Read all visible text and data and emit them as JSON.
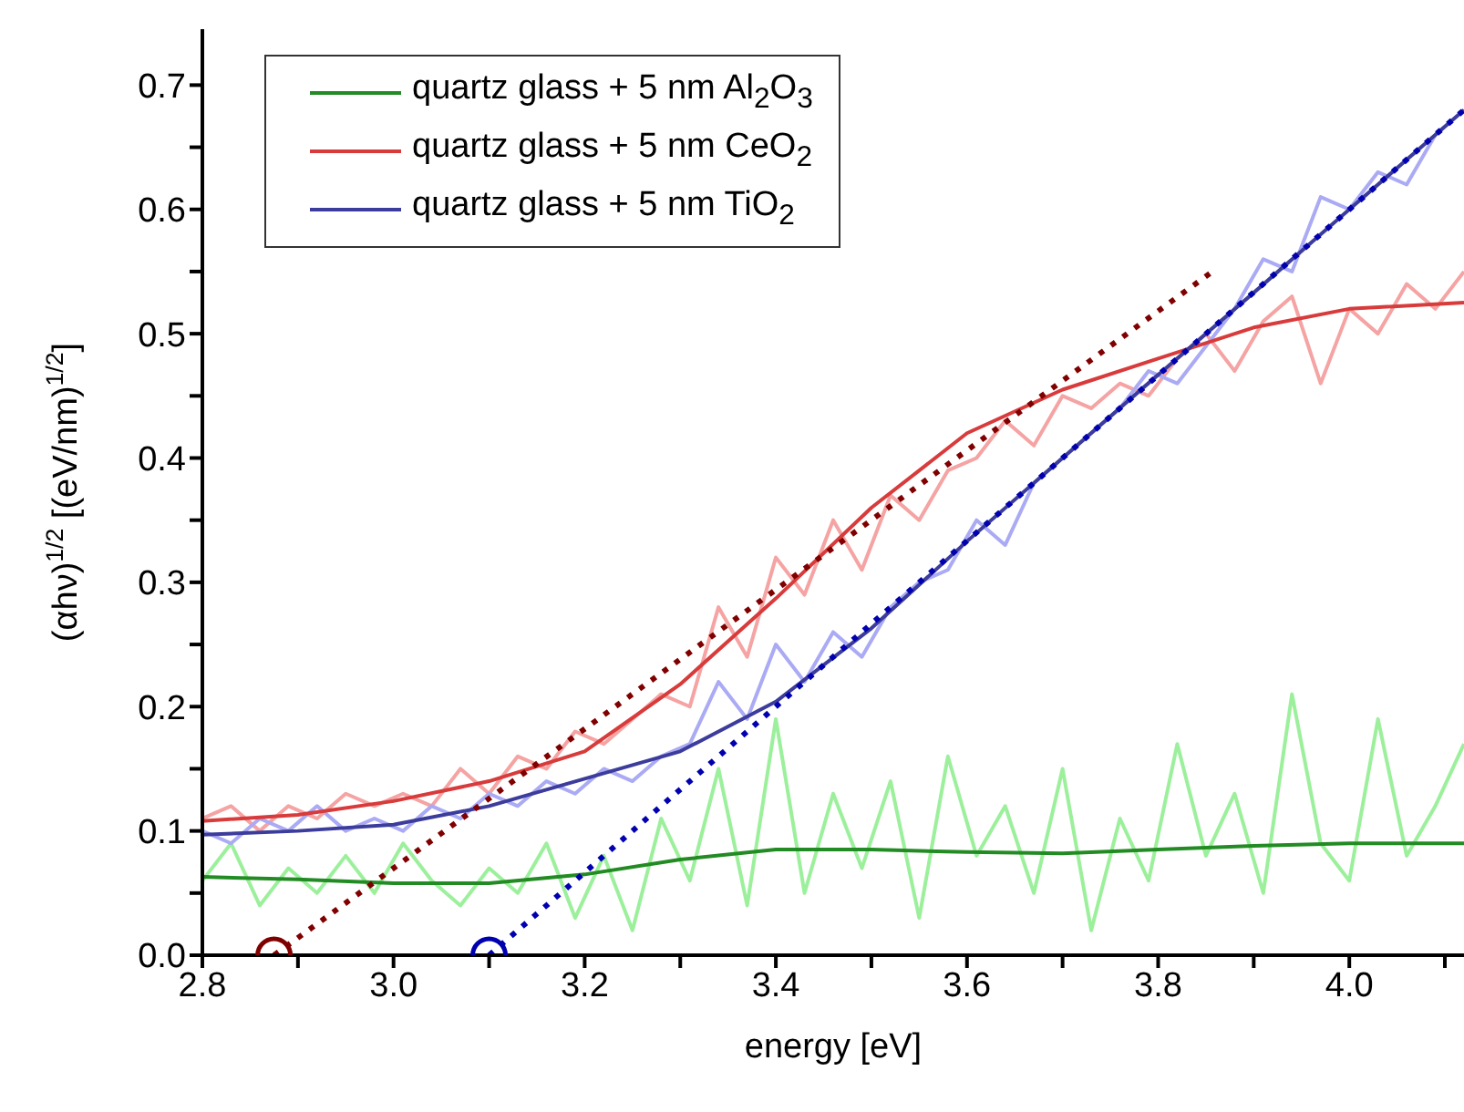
{
  "chart_data": {
    "type": "line",
    "xlabel": "energy [eV]",
    "ylabel": "(αhν)$^{1/2}$ [(eV/nm)$^{1/2}$]",
    "xlim": [
      2.8,
      4.12
    ],
    "xticks": [
      2.8,
      {
        "value": 2.9,
        "label": null
      },
      {
        "value": 3.0,
        "label": "3.0"
      },
      {
        "value": 3.1,
        "label": null
      },
      3.2,
      {
        "value": 3.3,
        "label": null
      },
      3.4,
      {
        "value": 3.5,
        "label": null
      },
      3.6,
      {
        "value": 3.7,
        "label": null
      },
      3.8,
      {
        "value": 3.9,
        "label": null
      },
      {
        "value": 4.0,
        "label": "4.0"
      },
      {
        "value": 4.1,
        "label": null
      }
    ],
    "ylim": [
      0,
      0.745
    ],
    "yticks": [
      {
        "value": 0,
        "label": "0.0"
      },
      {
        "value": 0.05,
        "label": null
      },
      0.1,
      {
        "value": 0.15,
        "label": null
      },
      0.2,
      {
        "value": 0.25,
        "label": null
      },
      0.3,
      {
        "value": 0.35,
        "label": null
      },
      0.4,
      {
        "value": 0.45,
        "label": null
      },
      0.5,
      {
        "value": 0.55,
        "label": null
      },
      0.6,
      {
        "value": 0.65,
        "label": null
      },
      0.7
    ],
    "grid": false,
    "legend": "top left",
    "marker": "none",
    "series": [
      {
        "color": "#9cf09c",
        "x": [
          2.8,
          2.83,
          2.86,
          2.89,
          2.92,
          2.95,
          2.98,
          3.01,
          3.04,
          3.07,
          3.1,
          3.13,
          3.16,
          3.19,
          3.22,
          3.25,
          3.28,
          3.31,
          3.34,
          3.37,
          3.4,
          3.43,
          3.46,
          3.49,
          3.52,
          3.55,
          3.58,
          3.61,
          3.64,
          3.67,
          3.7,
          3.73,
          3.76,
          3.79,
          3.82,
          3.85,
          3.88,
          3.91,
          3.94,
          3.97,
          4.0,
          4.03,
          4.06,
          4.09,
          4.12
        ],
        "values": [
          0.06,
          0.09,
          0.04,
          0.07,
          0.05,
          0.08,
          0.05,
          0.09,
          0.06,
          0.04,
          0.07,
          0.05,
          0.09,
          0.03,
          0.08,
          0.02,
          0.11,
          0.06,
          0.15,
          0.04,
          0.19,
          0.05,
          0.13,
          0.07,
          0.14,
          0.03,
          0.16,
          0.08,
          0.12,
          0.05,
          0.15,
          0.02,
          0.11,
          0.06,
          0.17,
          0.08,
          0.13,
          0.05,
          0.21,
          0.09,
          0.06,
          0.19,
          0.08,
          0.12,
          0.17
        ]
      },
      {
        "color": "#f5a3a3",
        "x": [
          2.8,
          2.83,
          2.86,
          2.89,
          2.92,
          2.95,
          2.98,
          3.01,
          3.04,
          3.07,
          3.1,
          3.13,
          3.16,
          3.19,
          3.22,
          3.25,
          3.28,
          3.31,
          3.34,
          3.37,
          3.4,
          3.43,
          3.46,
          3.49,
          3.52,
          3.55,
          3.58,
          3.61,
          3.64,
          3.67,
          3.7,
          3.73,
          3.76,
          3.79,
          3.82,
          3.85,
          3.88,
          3.91,
          3.94,
          3.97,
          4.0,
          4.03,
          4.06,
          4.09,
          4.12
        ],
        "values": [
          0.11,
          0.12,
          0.1,
          0.12,
          0.11,
          0.13,
          0.12,
          0.13,
          0.12,
          0.15,
          0.13,
          0.16,
          0.15,
          0.18,
          0.17,
          0.19,
          0.21,
          0.2,
          0.28,
          0.24,
          0.32,
          0.29,
          0.35,
          0.31,
          0.37,
          0.35,
          0.39,
          0.4,
          0.43,
          0.41,
          0.45,
          0.44,
          0.46,
          0.45,
          0.48,
          0.5,
          0.47,
          0.51,
          0.53,
          0.46,
          0.52,
          0.5,
          0.54,
          0.52,
          0.55
        ]
      },
      {
        "color": "#aaaaf5",
        "x": [
          2.8,
          2.83,
          2.86,
          2.89,
          2.92,
          2.95,
          2.98,
          3.01,
          3.04,
          3.07,
          3.1,
          3.13,
          3.16,
          3.19,
          3.22,
          3.25,
          3.28,
          3.31,
          3.34,
          3.37,
          3.4,
          3.43,
          3.46,
          3.49,
          3.52,
          3.55,
          3.58,
          3.61,
          3.64,
          3.67,
          3.7,
          3.73,
          3.76,
          3.79,
          3.82,
          3.85,
          3.88,
          3.91,
          3.94,
          3.97,
          4.0,
          4.03,
          4.06,
          4.09,
          4.12
        ],
        "values": [
          0.1,
          0.09,
          0.11,
          0.1,
          0.12,
          0.1,
          0.11,
          0.1,
          0.12,
          0.11,
          0.13,
          0.12,
          0.14,
          0.13,
          0.15,
          0.14,
          0.16,
          0.17,
          0.22,
          0.19,
          0.25,
          0.22,
          0.26,
          0.24,
          0.28,
          0.3,
          0.31,
          0.35,
          0.33,
          0.38,
          0.4,
          0.42,
          0.44,
          0.47,
          0.46,
          0.49,
          0.52,
          0.56,
          0.55,
          0.61,
          0.6,
          0.63,
          0.62,
          0.66,
          0.68
        ]
      },
      {
        "name": "quartz glass + 5 nm Al$_{2}$O$_{3}$",
        "color": "#238b23",
        "x": [
          2.8,
          2.9,
          3.0,
          3.1,
          3.2,
          3.3,
          3.4,
          3.5,
          3.6,
          3.7,
          3.8,
          3.9,
          4.0,
          4.12
        ],
        "values": [
          0.063,
          0.061,
          0.058,
          0.058,
          0.065,
          0.077,
          0.085,
          0.085,
          0.083,
          0.082,
          0.085,
          0.088,
          0.09,
          0.09
        ]
      },
      {
        "name": "quartz glass + 5 nm CeO$_{2}$",
        "color": "#d83b3b",
        "x": [
          2.8,
          2.9,
          3.0,
          3.1,
          3.2,
          3.3,
          3.4,
          3.5,
          3.6,
          3.7,
          3.8,
          3.9,
          4.0,
          4.12
        ],
        "values": [
          0.108,
          0.113,
          0.124,
          0.14,
          0.164,
          0.218,
          0.287,
          0.36,
          0.42,
          0.455,
          0.48,
          0.505,
          0.52,
          0.525
        ]
      },
      {
        "name": "quartz glass + 5 nm TiO$_{2}$",
        "color": "#3c3c9c",
        "x": [
          2.8,
          2.9,
          3.0,
          3.1,
          3.2,
          3.3,
          3.4,
          3.5,
          3.6,
          3.7,
          3.8,
          3.9,
          4.0,
          4.12
        ],
        "values": [
          0.097,
          0.1,
          0.105,
          0.12,
          0.142,
          0.164,
          0.204,
          0.263,
          0.333,
          0.4,
          0.467,
          0.533,
          0.6,
          0.68
        ]
      },
      {
        "color": "#800000",
        "line_style": "dotted",
        "x": [
          2.875,
          3.855
        ],
        "values": [
          0,
          0.549
        ]
      },
      {
        "color": "#0000b0",
        "line_style": "dotted",
        "x": [
          3.1,
          4.12
        ],
        "values": [
          0,
          0.68
        ]
      },
      {
        "type": "scatter",
        "marker": "circle",
        "color": "#800000",
        "x": [
          2.875
        ],
        "values": [
          0
        ]
      },
      {
        "type": "scatter",
        "marker": "circle",
        "color": "#0000b0",
        "x": [
          3.1
        ],
        "values": [
          0
        ]
      }
    ]
  }
}
